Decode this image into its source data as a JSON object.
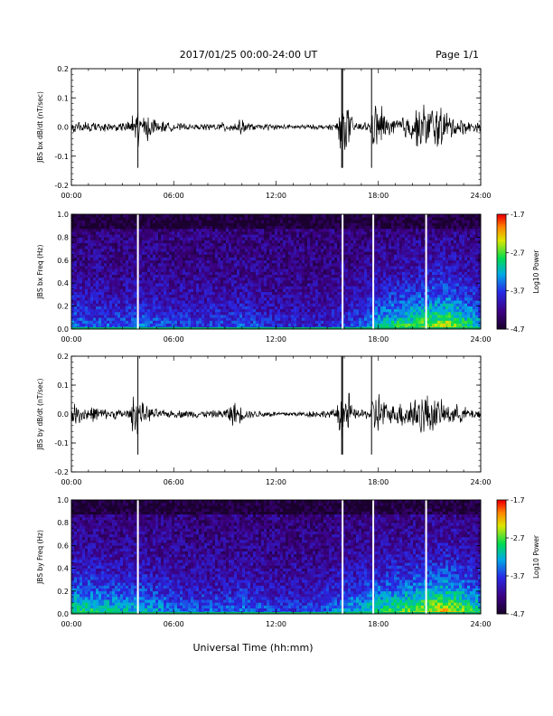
{
  "header": {
    "title": "2017/01/25  00:00-24:00 UT",
    "page": "Page 1/1"
  },
  "x_axis": {
    "label": "Universal Time (hh:mm)",
    "ticks": [
      "00:00",
      "06:00",
      "12:00",
      "18:00",
      "24:00"
    ],
    "range_hours": [
      0,
      24
    ]
  },
  "colorbar": {
    "label": "Log10 Power",
    "ticks": [
      "-1.7",
      "-2.7",
      "-3.7",
      "-4.7"
    ],
    "range": [
      -4.7,
      -1.7
    ]
  },
  "chart_data": [
    {
      "type": "line",
      "ylabel": "JBS bx dB/dt (nT/sec)",
      "ylim": [
        -0.2,
        0.2
      ],
      "yticks": [
        "0.2",
        "0.1",
        "0.0",
        "-0.1",
        "-0.2"
      ],
      "series": [
        {
          "x_hours": [
            0,
            0.5,
            1,
            1.5,
            2,
            2.5,
            3,
            3.5,
            3.8,
            4,
            4.5,
            5,
            5.5,
            6,
            6.5,
            7,
            7.5,
            8,
            8.5,
            9,
            9.5,
            10,
            10.5,
            11,
            11.5,
            12,
            12.5,
            13,
            13.5,
            14,
            14.5,
            15,
            15.5,
            16,
            16.5,
            17,
            17.5,
            18,
            18.5,
            19,
            19.5,
            20,
            20.5,
            21,
            21.5,
            22,
            22.5,
            23,
            23.5,
            24
          ],
          "amplitude": [
            0.02,
            0.02,
            0.02,
            0.02,
            0.02,
            0.015,
            0.02,
            0.02,
            0.2,
            0.04,
            0.05,
            0.03,
            0.02,
            0.015,
            0.015,
            0.01,
            0.01,
            0.015,
            0.015,
            0.02,
            0.02,
            0.03,
            0.015,
            0.01,
            0.015,
            0.01,
            0.01,
            0.01,
            0.01,
            0.01,
            0.01,
            0.01,
            0.015,
            0.2,
            0.02,
            0.02,
            0.02,
            0.17,
            0.03,
            0.04,
            0.05,
            0.06,
            0.09,
            0.13,
            0.11,
            0.06,
            0.04,
            0.03,
            0.02,
            0.02
          ]
        }
      ],
      "spikes_hours": [
        3.9,
        15.85,
        15.9,
        17.6
      ]
    },
    {
      "type": "heatmap",
      "ylabel": "JBS bx Freq (Hz)",
      "ylim": [
        0.0,
        1.0
      ],
      "yticks": [
        "1.0",
        "0.8",
        "0.6",
        "0.4",
        "0.2",
        "0.0"
      ],
      "activity_hours": [
        0,
        1,
        2,
        3,
        4,
        5,
        6,
        7,
        8,
        9,
        10,
        11,
        12,
        13,
        14,
        15,
        16,
        17,
        18,
        19,
        20,
        21,
        22,
        23,
        24
      ],
      "activity_level": [
        0.35,
        0.3,
        0.3,
        0.28,
        0.35,
        0.3,
        0.25,
        0.25,
        0.25,
        0.25,
        0.3,
        0.25,
        0.2,
        0.2,
        0.2,
        0.2,
        0.25,
        0.3,
        0.45,
        0.55,
        0.6,
        0.7,
        0.75,
        0.6,
        0.45
      ],
      "gap_hours": [
        3.9,
        15.9,
        17.7,
        20.8
      ]
    },
    {
      "type": "line",
      "ylabel": "JBS by dB/dt (nT/sec)",
      "ylim": [
        -0.2,
        0.2
      ],
      "yticks": [
        "0.2",
        "0.1",
        "0.0",
        "-0.1",
        "-0.2"
      ],
      "series": [
        {
          "x_hours": [
            0,
            0.5,
            1,
            1.5,
            2,
            2.5,
            3,
            3.5,
            3.8,
            4,
            4.5,
            5,
            5.5,
            6,
            6.5,
            7,
            7.5,
            8,
            8.5,
            9,
            9.5,
            10,
            10.5,
            11,
            11.5,
            12,
            12.5,
            13,
            13.5,
            14,
            14.5,
            15,
            15.5,
            16,
            16.5,
            17,
            17.5,
            18,
            18.5,
            19,
            19.5,
            20,
            20.5,
            21,
            21.5,
            22,
            22.5,
            23,
            23.5,
            24
          ],
          "amplitude": [
            0.04,
            0.04,
            0.03,
            0.03,
            0.02,
            0.02,
            0.02,
            0.02,
            0.2,
            0.05,
            0.03,
            0.02,
            0.015,
            0.015,
            0.015,
            0.015,
            0.015,
            0.015,
            0.015,
            0.02,
            0.05,
            0.03,
            0.015,
            0.015,
            0.015,
            0.01,
            0.01,
            0.01,
            0.01,
            0.015,
            0.015,
            0.015,
            0.02,
            0.2,
            0.02,
            0.02,
            0.02,
            0.2,
            0.03,
            0.04,
            0.06,
            0.07,
            0.09,
            0.08,
            0.06,
            0.04,
            0.04,
            0.03,
            0.02,
            0.02
          ]
        }
      ],
      "spikes_hours": [
        3.9,
        15.85,
        15.9,
        17.6
      ]
    },
    {
      "type": "heatmap",
      "ylabel": "JBS by Freq (Hz)",
      "ylim": [
        0.0,
        1.0
      ],
      "yticks": [
        "1.0",
        "0.8",
        "0.6",
        "0.4",
        "0.2",
        "0.0"
      ],
      "activity_hours": [
        0,
        1,
        2,
        3,
        4,
        5,
        6,
        7,
        8,
        9,
        10,
        11,
        12,
        13,
        14,
        15,
        16,
        17,
        18,
        19,
        20,
        21,
        22,
        23,
        24
      ],
      "activity_level": [
        0.55,
        0.55,
        0.5,
        0.45,
        0.45,
        0.4,
        0.35,
        0.3,
        0.3,
        0.3,
        0.35,
        0.3,
        0.25,
        0.25,
        0.25,
        0.3,
        0.4,
        0.45,
        0.55,
        0.6,
        0.65,
        0.75,
        0.8,
        0.65,
        0.5
      ],
      "gap_hours": [
        3.9,
        15.9,
        17.7,
        20.8
      ]
    }
  ]
}
